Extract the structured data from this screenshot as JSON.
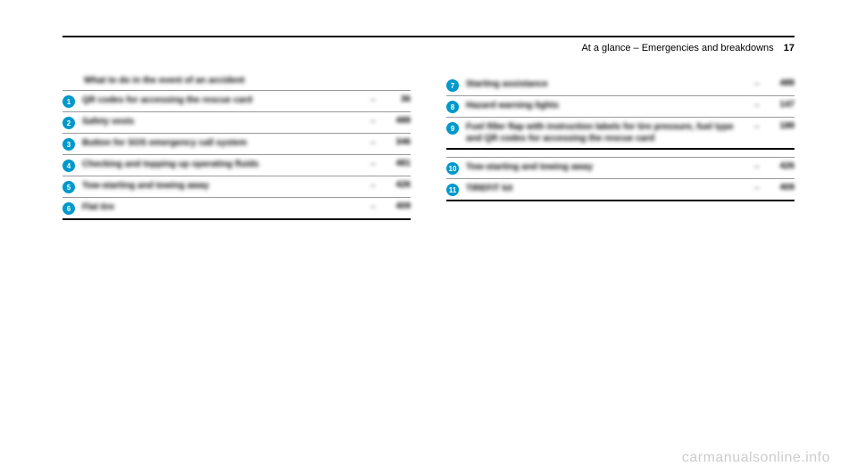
{
  "header": {
    "section": "At a glance – Emergencies and breakdowns",
    "page_number": "17"
  },
  "left_column": {
    "title": "What to do in the event of an accident",
    "items": [
      {
        "num": "1",
        "label": "QR codes for accessing the rescue card",
        "page": "36"
      },
      {
        "num": "2",
        "label": "Safety vests",
        "page": "488"
      },
      {
        "num": "3",
        "label": "Button for SOS emergency call system",
        "page": "346"
      },
      {
        "num": "4",
        "label": "Checking and topping up operating fluids",
        "page": "481"
      },
      {
        "num": "5",
        "label": "Tow-starting and towing away",
        "page": "426"
      },
      {
        "num": "6",
        "label": "Flat tire",
        "page": "409"
      }
    ]
  },
  "right_column": {
    "items": [
      {
        "num": "7",
        "label": "Starting assistance",
        "page": "488"
      },
      {
        "num": "8",
        "label": "Hazard warning lights",
        "page": "147"
      },
      {
        "num": "9",
        "label": "Fuel filler flap with instruction labels for tire pressure, fuel type and QR codes for accessing the rescue card",
        "page": "188"
      }
    ],
    "items2": [
      {
        "num": "10",
        "label": "Tow-starting and towing away",
        "page": "426"
      },
      {
        "num": "11",
        "label": "TIREFIT kit",
        "page": "409"
      }
    ]
  },
  "watermark": "carmanualsonline.info"
}
